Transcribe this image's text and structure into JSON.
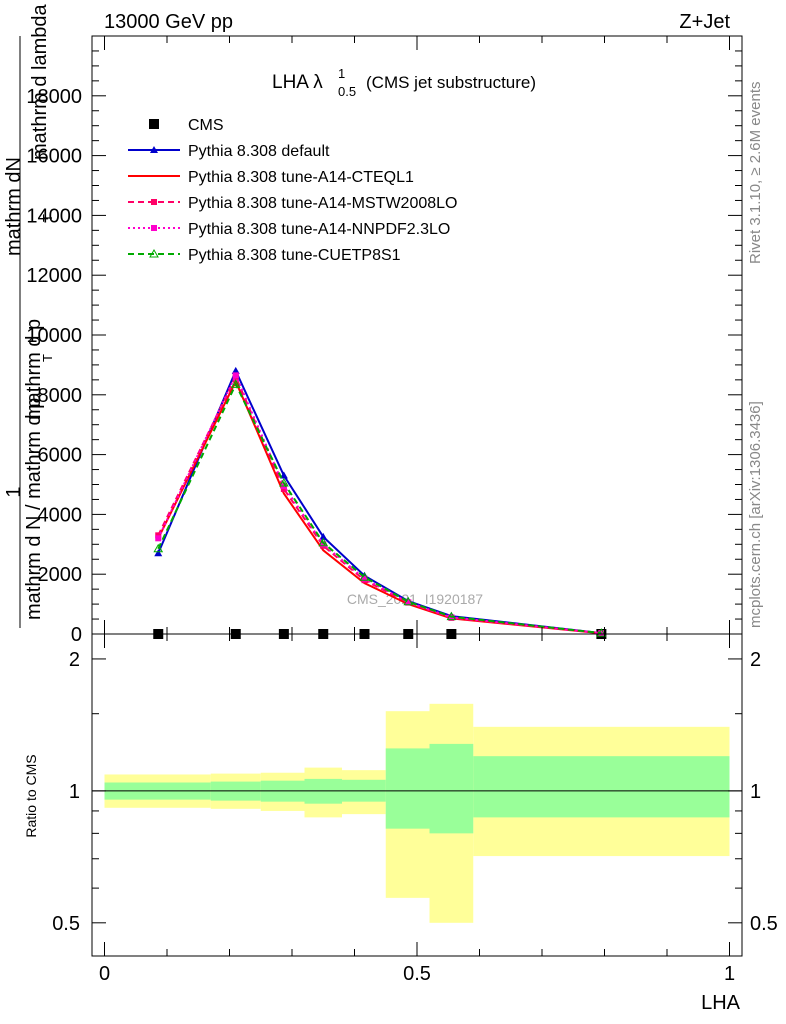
{
  "header": {
    "left": "13000 GeV pp",
    "right": "Z+Jet"
  },
  "plot_title": {
    "main": "LHA λ",
    "sup": "1",
    "sub": "0.5",
    "paren": "(CMS jet substructure)"
  },
  "watermark": "CMS_2021_I1920187",
  "side_text": {
    "top": "Rivet 3.1.10, ≥ 2.6M events",
    "bottom": "mcplots.cern.ch [arXiv:1306.3436]"
  },
  "chart_data": [
    {
      "type": "line",
      "title": "LHA λ^1_0.5 (CMS jet substructure)",
      "xlabel": "LHA",
      "ylabel": {
        "numerator_1": "1",
        "numerator_2": "mathrm dN",
        "denominator_1": "mathrm d N / mathrm d p",
        "denominator_2": "mathrm d p",
        "denominator_3": "mathrm d lambda",
        "subscript_T": "T"
      },
      "xlim": [
        -0.02,
        1.02
      ],
      "ylim": [
        0,
        20000
      ],
      "yticks": [
        0,
        2000,
        4000,
        6000,
        8000,
        10000,
        12000,
        14000,
        16000,
        18000
      ],
      "ytick_labels": [
        "0",
        "2000",
        "4000",
        "6000",
        "8000",
        "10000",
        "12000",
        "14000",
        "16000",
        "18000"
      ],
      "legend_position": "top-left",
      "x": [
        0.086,
        0.21,
        0.287,
        0.35,
        0.416,
        0.486,
        0.555,
        0.795
      ],
      "series": [
        {
          "name": "CMS",
          "color": "#000000",
          "marker": "square",
          "style": "none",
          "values": [
            0,
            0,
            0,
            0,
            0,
            0,
            0,
            0
          ]
        },
        {
          "name": "Pythia 8.308 default",
          "color": "#0000cc",
          "marker": "triangle",
          "style": "solid",
          "values": [
            2700,
            8800,
            5300,
            3250,
            1950,
            1100,
            600,
            30
          ]
        },
        {
          "name": "Pythia 8.308 tune-A14-CTEQL1",
          "color": "#ff0000",
          "marker": "none",
          "style": "solid",
          "values": [
            3200,
            8450,
            4700,
            2800,
            1700,
            1000,
            520,
            25
          ]
        },
        {
          "name": "Pythia 8.308 tune-A14-MSTW2008LO",
          "color": "#ff0066",
          "marker": "square",
          "style": "dashed",
          "values": [
            3300,
            8600,
            4850,
            2950,
            1800,
            1050,
            540,
            25
          ]
        },
        {
          "name": "Pythia 8.308 tune-A14-NNPDF2.3LO",
          "color": "#ff00cc",
          "marker": "square",
          "style": "dotted",
          "values": [
            3200,
            8650,
            4950,
            3000,
            1850,
            1060,
            560,
            25
          ]
        },
        {
          "name": "Pythia 8.308 tune-CUETP8S1",
          "color": "#00aa00",
          "marker": "triangle-open",
          "style": "dashed",
          "values": [
            2850,
            8350,
            5050,
            3050,
            1900,
            1080,
            580,
            30
          ]
        }
      ]
    },
    {
      "type": "area",
      "ylabel": "Ratio to CMS",
      "xlabel": "LHA",
      "xlim": [
        -0.02,
        1.02
      ],
      "ylim": [
        0.42,
        2.28
      ],
      "log_y": true,
      "yticks": [
        0.5,
        1,
        2
      ],
      "ytick_labels": [
        "0.5",
        "1",
        "2"
      ],
      "xticks": [
        0,
        0.5,
        1
      ],
      "xtick_labels": [
        "0",
        "0.5",
        "1"
      ],
      "reference_line": 1,
      "bins": [
        {
          "x_low": 0.0,
          "x_high": 0.17,
          "inner_low": 0.955,
          "inner_high": 1.045,
          "outer_low": 0.915,
          "outer_high": 1.09
        },
        {
          "x_low": 0.17,
          "x_high": 0.25,
          "inner_low": 0.95,
          "inner_high": 1.05,
          "outer_low": 0.91,
          "outer_high": 1.095
        },
        {
          "x_low": 0.25,
          "x_high": 0.32,
          "inner_low": 0.945,
          "inner_high": 1.055,
          "outer_low": 0.9,
          "outer_high": 1.1
        },
        {
          "x_low": 0.32,
          "x_high": 0.38,
          "inner_low": 0.935,
          "inner_high": 1.065,
          "outer_low": 0.87,
          "outer_high": 1.13
        },
        {
          "x_low": 0.38,
          "x_high": 0.45,
          "inner_low": 0.945,
          "inner_high": 1.06,
          "outer_low": 0.885,
          "outer_high": 1.115
        },
        {
          "x_low": 0.45,
          "x_high": 0.52,
          "inner_low": 0.82,
          "inner_high": 1.25,
          "outer_low": 0.57,
          "outer_high": 1.52
        },
        {
          "x_low": 0.52,
          "x_high": 0.59,
          "inner_low": 0.8,
          "inner_high": 1.28,
          "outer_low": 0.5,
          "outer_high": 1.58
        },
        {
          "x_low": 0.59,
          "x_high": 1.0,
          "inner_low": 0.87,
          "inner_high": 1.2,
          "outer_low": 0.71,
          "outer_high": 1.4
        }
      ],
      "colors": {
        "inner": "#99ff99",
        "outer": "#ffff99"
      }
    }
  ]
}
